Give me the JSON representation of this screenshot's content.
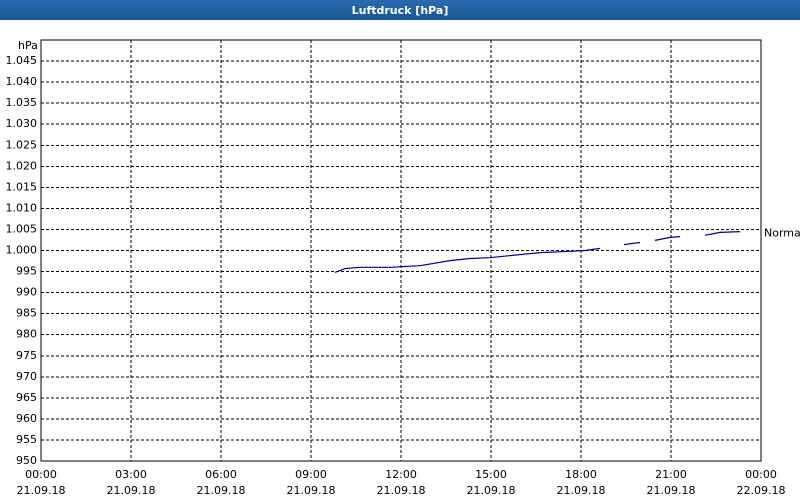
{
  "chart_data": {
    "type": "line",
    "title": "Luftdruck [hPa]",
    "y_label": "hPa",
    "color": "#00008b",
    "x": [
      "2018-09-21 09:48",
      "2018-09-21 10:08",
      "2018-09-21 10:38",
      "2018-09-21 11:38",
      "2018-09-21 12:38",
      "2018-09-21 13:38",
      "2018-09-21 14:18",
      "2018-09-21 14:58",
      "2018-09-21 15:38",
      "2018-09-21 16:38",
      "2018-09-21 17:38",
      "2018-09-21 18:08",
      "2018-09-21 18:38",
      "2018-09-21 19:08",
      "2018-09-21 19:26",
      "2018-09-21 19:58",
      "2018-09-21 20:13",
      "2018-09-21 20:28",
      "2018-09-21 20:58",
      "2018-09-21 21:18",
      "2018-09-21 21:48",
      "2018-09-21 22:08",
      "2018-09-21 22:38",
      "2018-09-21 23:18"
    ],
    "values": [
      994.8,
      995.7,
      996,
      996,
      996.4,
      997.6,
      998.1,
      998.3,
      998.8,
      999.5,
      999.8,
      1000,
      1000.5,
      null,
      1001.4,
      1001.9,
      null,
      1002.4,
      1003.1,
      1003.3,
      null,
      1003.6,
      1004.3,
      1004.5
    ],
    "reference": {
      "label": "Normal",
      "value": 1004
    },
    "xlim": [
      "2018-09-21 00:00",
      "2018-09-22 00:00"
    ],
    "xticks": [
      {
        "value": "2018-09-21 00:00",
        "label": [
          "00:00",
          "21.09.18"
        ]
      },
      {
        "value": "2018-09-21 03:00",
        "label": [
          "03:00",
          "21.09.18"
        ]
      },
      {
        "value": "2018-09-21 06:00",
        "label": [
          "06:00",
          "21.09.18"
        ]
      },
      {
        "value": "2018-09-21 09:00",
        "label": [
          "09:00",
          "21.09.18"
        ]
      },
      {
        "value": "2018-09-21 12:00",
        "label": [
          "12:00",
          "21.09.18"
        ]
      },
      {
        "value": "2018-09-21 15:00",
        "label": [
          "15:00",
          "21.09.18"
        ]
      },
      {
        "value": "2018-09-21 18:00",
        "label": [
          "18:00",
          "21.09.18"
        ]
      },
      {
        "value": "2018-09-21 21:00",
        "label": [
          "21:00",
          "21.09.18"
        ]
      },
      {
        "value": "2018-09-22 00:00",
        "label": [
          "00:00",
          "22.09.18"
        ]
      }
    ],
    "ylim": [
      950,
      1050
    ],
    "yticks": [
      950,
      955,
      960,
      965,
      970,
      975,
      980,
      985,
      990,
      995,
      {
        "value": 1000,
        "label": "1.000"
      },
      {
        "value": 1005,
        "label": "1.005"
      },
      {
        "value": 1010,
        "label": "1.010"
      },
      {
        "value": 1015,
        "label": "1.015"
      },
      {
        "value": 1020,
        "label": "1.020"
      },
      {
        "value": 1025,
        "label": "1.025"
      },
      {
        "value": 1030,
        "label": "1.030"
      },
      {
        "value": 1035,
        "label": "1.035"
      },
      {
        "value": 1040,
        "label": "1.040"
      },
      {
        "value": 1045,
        "label": "1.045"
      }
    ],
    "grid": true
  }
}
